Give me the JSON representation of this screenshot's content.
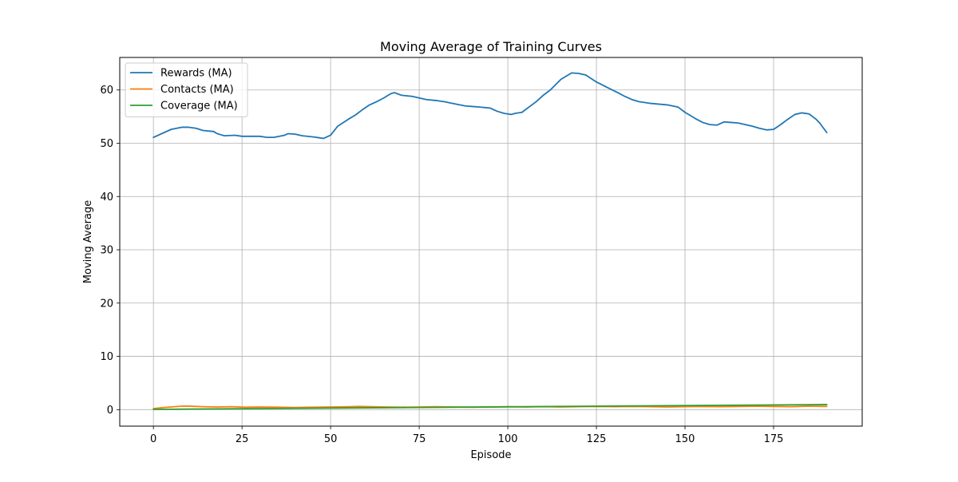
{
  "chart_data": {
    "type": "line",
    "title": "Moving Average of Training Curves",
    "xlabel": "Episode",
    "ylabel": "Moving Average",
    "xlim": [
      -9.5,
      200
    ],
    "ylim": [
      -3.1,
      66.1
    ],
    "xticks": [
      0,
      25,
      50,
      75,
      100,
      125,
      150,
      175
    ],
    "yticks": [
      0,
      10,
      20,
      30,
      40,
      50,
      60
    ],
    "xtick_labels": [
      "0",
      "25",
      "50",
      "75",
      "100",
      "125",
      "150",
      "175"
    ],
    "ytick_labels": [
      "0",
      "10",
      "20",
      "30",
      "40",
      "50",
      "60"
    ],
    "grid": true,
    "legend_position": "top-left",
    "series": [
      {
        "name": "Rewards (MA)",
        "color": "#1f77b4",
        "x": [
          0,
          5,
          8,
          10,
          12,
          14,
          17,
          18,
          19,
          20,
          23,
          25,
          28,
          30,
          32,
          34,
          37,
          38,
          40,
          42,
          45,
          47,
          48,
          50,
          52,
          55,
          57,
          59,
          61,
          63,
          65,
          67,
          68,
          70,
          73,
          75,
          77,
          80,
          82,
          85,
          88,
          90,
          92,
          95,
          97,
          99,
          101,
          102,
          104,
          106,
          108,
          110,
          112,
          115,
          118,
          120,
          122,
          125,
          128,
          131,
          133,
          135,
          137,
          140,
          145,
          148,
          150,
          153,
          155,
          157,
          159,
          161,
          163,
          165,
          167,
          169,
          171,
          173,
          175,
          177,
          179,
          181,
          183,
          185,
          187,
          188,
          190
        ],
        "values": [
          51.1,
          52.6,
          53,
          53,
          52.8,
          52.4,
          52.2,
          51.8,
          51.6,
          51.4,
          51.5,
          51.3,
          51.3,
          51.3,
          51.1,
          51.1,
          51.5,
          51.8,
          51.7,
          51.4,
          51.2,
          51,
          50.9,
          51.5,
          53.2,
          54.5,
          55.3,
          56.3,
          57.2,
          57.8,
          58.5,
          59.3,
          59.5,
          59,
          58.8,
          58.5,
          58.2,
          58,
          57.8,
          57.4,
          57,
          56.9,
          56.8,
          56.6,
          56,
          55.6,
          55.4,
          55.6,
          55.8,
          56.8,
          57.8,
          59,
          60,
          62,
          63.2,
          63.1,
          62.8,
          61.5,
          60.5,
          59.5,
          58.8,
          58.2,
          57.8,
          57.5,
          57.2,
          56.8,
          55.8,
          54.6,
          53.9,
          53.5,
          53.4,
          54,
          53.9,
          53.8,
          53.5,
          53.2,
          52.8,
          52.5,
          52.6,
          53.5,
          54.5,
          55.4,
          55.7,
          55.5,
          54.5,
          53.8,
          52
        ]
      },
      {
        "name": "Contacts (MA)",
        "color": "#ff7f0e",
        "x": [
          0,
          3,
          6,
          8,
          10,
          14,
          18,
          22,
          26,
          30,
          35,
          40,
          45,
          50,
          55,
          58,
          62,
          66,
          70,
          75,
          80,
          85,
          90,
          95,
          100,
          105,
          110,
          115,
          120,
          125,
          130,
          135,
          140,
          145,
          150,
          155,
          160,
          165,
          170,
          175,
          180,
          185,
          190
        ],
        "values": [
          0.2,
          0.4,
          0.55,
          0.65,
          0.65,
          0.55,
          0.5,
          0.55,
          0.45,
          0.5,
          0.45,
          0.4,
          0.45,
          0.5,
          0.55,
          0.6,
          0.55,
          0.5,
          0.45,
          0.5,
          0.55,
          0.5,
          0.45,
          0.5,
          0.55,
          0.5,
          0.55,
          0.5,
          0.55,
          0.6,
          0.55,
          0.6,
          0.55,
          0.5,
          0.55,
          0.6,
          0.55,
          0.6,
          0.65,
          0.6,
          0.55,
          0.65,
          0.6
        ]
      },
      {
        "name": "Coverage (MA)",
        "color": "#2ca02c",
        "x": [
          0,
          190
        ],
        "values": [
          0.05,
          0.95
        ]
      }
    ]
  }
}
